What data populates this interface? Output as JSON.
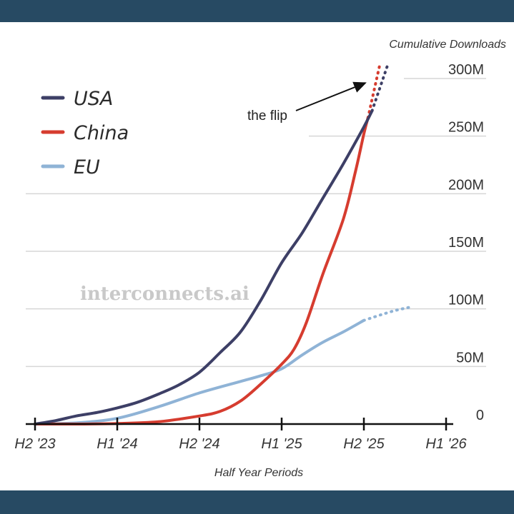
{
  "chart_data": {
    "type": "line",
    "ylabel": "Cumulative Downloads",
    "xlabel": "Half Year Periods",
    "categories": [
      "H2 '23",
      "H1 '24",
      "H2 '24",
      "H1 '25",
      "H2 '25",
      "H1 '26"
    ],
    "x_range": [
      0,
      5
    ],
    "ylim": [
      0,
      300
    ],
    "y_ticks": [
      {
        "value": 0,
        "label": "0"
      },
      {
        "value": 50,
        "label": "50M"
      },
      {
        "value": 100,
        "label": "100M"
      },
      {
        "value": 150,
        "label": "150M"
      },
      {
        "value": 200,
        "label": "200M"
      },
      {
        "value": 250,
        "label": "250M"
      },
      {
        "value": 300,
        "label": "300M"
      }
    ],
    "grid": true,
    "legend_position": "top-left",
    "series": [
      {
        "name": "USA",
        "color": "#3d3f66",
        "values": [
          {
            "x": 0.0,
            "y": 0
          },
          {
            "x": 0.25,
            "y": 3
          },
          {
            "x": 0.5,
            "y": 7
          },
          {
            "x": 0.75,
            "y": 10
          },
          {
            "x": 1.0,
            "y": 14
          },
          {
            "x": 1.25,
            "y": 19
          },
          {
            "x": 1.5,
            "y": 26
          },
          {
            "x": 1.75,
            "y": 34
          },
          {
            "x": 2.0,
            "y": 45
          },
          {
            "x": 2.25,
            "y": 62
          },
          {
            "x": 2.5,
            "y": 80
          },
          {
            "x": 2.75,
            "y": 108
          },
          {
            "x": 3.0,
            "y": 140
          },
          {
            "x": 3.25,
            "y": 166
          },
          {
            "x": 3.5,
            "y": 196
          },
          {
            "x": 3.75,
            "y": 226
          },
          {
            "x": 4.0,
            "y": 258
          },
          {
            "x": 4.1,
            "y": 272
          }
        ],
        "projected": [
          {
            "x": 4.1,
            "y": 272
          },
          {
            "x": 4.3,
            "y": 314
          }
        ]
      },
      {
        "name": "China",
        "color": "#d63c2f",
        "values": [
          {
            "x": 0.0,
            "y": 0
          },
          {
            "x": 0.5,
            "y": 0
          },
          {
            "x": 1.0,
            "y": 0.5
          },
          {
            "x": 1.5,
            "y": 2
          },
          {
            "x": 2.0,
            "y": 7
          },
          {
            "x": 2.25,
            "y": 11
          },
          {
            "x": 2.5,
            "y": 20
          },
          {
            "x": 2.75,
            "y": 35
          },
          {
            "x": 3.0,
            "y": 52
          },
          {
            "x": 3.15,
            "y": 65
          },
          {
            "x": 3.3,
            "y": 88
          },
          {
            "x": 3.5,
            "y": 130
          },
          {
            "x": 3.75,
            "y": 178
          },
          {
            "x": 3.9,
            "y": 220
          },
          {
            "x": 4.0,
            "y": 252
          },
          {
            "x": 4.05,
            "y": 266
          }
        ],
        "projected": [
          {
            "x": 4.05,
            "y": 266
          },
          {
            "x": 4.2,
            "y": 314
          }
        ]
      },
      {
        "name": "EU",
        "color": "#8fb3d6",
        "values": [
          {
            "x": 0.0,
            "y": 0
          },
          {
            "x": 0.5,
            "y": 1
          },
          {
            "x": 1.0,
            "y": 5
          },
          {
            "x": 1.5,
            "y": 15
          },
          {
            "x": 2.0,
            "y": 27
          },
          {
            "x": 2.5,
            "y": 37
          },
          {
            "x": 2.75,
            "y": 42
          },
          {
            "x": 3.0,
            "y": 48
          },
          {
            "x": 3.25,
            "y": 60
          },
          {
            "x": 3.5,
            "y": 71
          },
          {
            "x": 3.75,
            "y": 80
          },
          {
            "x": 4.0,
            "y": 90
          }
        ],
        "projected": [
          {
            "x": 4.0,
            "y": 90
          },
          {
            "x": 4.35,
            "y": 98
          },
          {
            "x": 4.6,
            "y": 102
          }
        ]
      }
    ],
    "annotations": [
      {
        "text": "the flip",
        "x": 4.0,
        "y": 298
      }
    ]
  },
  "watermark": "interconnects.ai"
}
